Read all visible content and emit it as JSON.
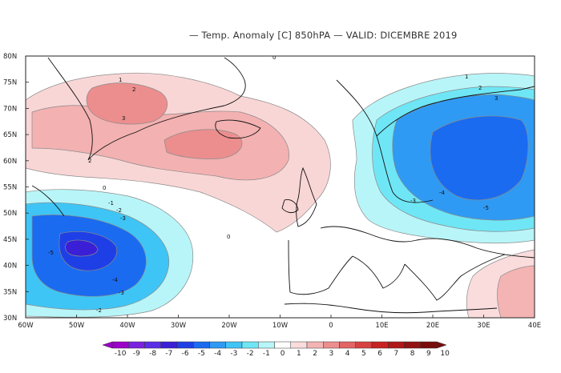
{
  "title": "— Temp. Anomaly [C] 850hPA — VALID: DICEMBRE 2019",
  "lat_labels": [
    "80N",
    "75N",
    "70N",
    "65N",
    "60N",
    "55N",
    "50N",
    "45N",
    "40N",
    "35N",
    "30N"
  ],
  "lon_labels": [
    "60W",
    "50W",
    "40W",
    "30W",
    "20W",
    "10W",
    "0",
    "10E",
    "20E",
    "30E",
    "40E"
  ],
  "colorbar": {
    "labels": [
      "-10",
      "-9",
      "-8",
      "-7",
      "-6",
      "-5",
      "-4",
      "-3",
      "-2",
      "-1",
      "0",
      "1",
      "2",
      "3",
      "4",
      "5",
      "6",
      "7",
      "8",
      "9",
      "10"
    ],
    "colors": [
      "#9a00c8",
      "#7a22e0",
      "#5b2ee8",
      "#3a1fd6",
      "#1f3fe6",
      "#1a6bf0",
      "#2f9af3",
      "#3fc5f5",
      "#6fe6f5",
      "#b8f5f8",
      "#ffffff",
      "#fadcdc",
      "#f4b4b4",
      "#ec8e8e",
      "#e26464",
      "#d84141",
      "#c82222",
      "#b01717",
      "#931212",
      "#7a0c0c"
    ]
  },
  "contour_labels": [
    "0",
    "-1",
    "-2",
    "-3",
    "-4",
    "-5",
    "1",
    "2",
    "3",
    "-6"
  ]
}
